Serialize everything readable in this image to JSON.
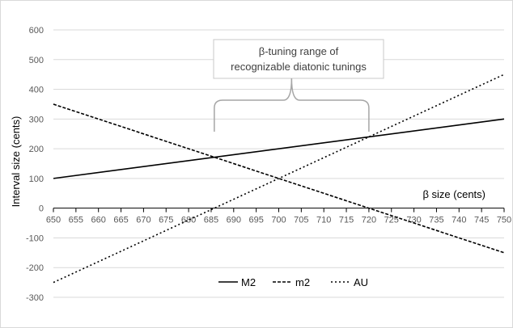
{
  "chart_data": {
    "type": "line",
    "title": "",
    "xlabel": "β size (cents)",
    "ylabel": "Interval size (cents)",
    "xlim": [
      650,
      750
    ],
    "ylim": [
      -300,
      600
    ],
    "x_ticks": [
      "650",
      "655",
      "660",
      "665",
      "670",
      "675",
      "680",
      "685",
      "690",
      "695",
      "700",
      "705",
      "710",
      "715",
      "720",
      "725",
      "730",
      "735",
      "740",
      "745",
      "750"
    ],
    "y_ticks": [
      "-300",
      "-200",
      "-100",
      "0",
      "100",
      "200",
      "300",
      "400",
      "500",
      "600"
    ],
    "grid": "horizontal",
    "legend_position": "bottom",
    "series": [
      {
        "name": "M2",
        "style": "solid",
        "color": "#000000",
        "x": [
          650,
          750
        ],
        "y": [
          100,
          300
        ]
      },
      {
        "name": "m2",
        "style": "dashed",
        "color": "#000000",
        "x": [
          650,
          750
        ],
        "y": [
          350,
          -150
        ]
      },
      {
        "name": "AU",
        "style": "dotted",
        "color": "#000000",
        "x": [
          650,
          750
        ],
        "y": [
          -250,
          450
        ]
      }
    ],
    "annotation": {
      "lines": [
        "β-tuning range of",
        "recognizable diatonic tunings"
      ],
      "range": [
        685.7,
        720
      ]
    }
  }
}
